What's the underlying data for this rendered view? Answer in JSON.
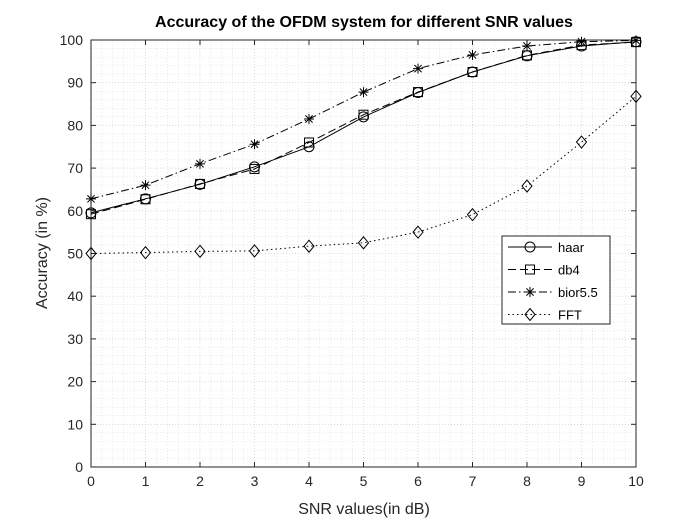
{
  "chart_data": {
    "type": "line",
    "title": "Accuracy of the OFDM system for different SNR values",
    "xlabel": "SNR values(in dB)",
    "ylabel": "Accuracy (in %)",
    "xlim": [
      0,
      10
    ],
    "ylim": [
      0,
      100
    ],
    "x_ticks": [
      "0",
      "1",
      "2",
      "3",
      "4",
      "5",
      "6",
      "7",
      "8",
      "9",
      "10"
    ],
    "y_ticks": [
      "0",
      "10",
      "20",
      "30",
      "40",
      "50",
      "60",
      "70",
      "80",
      "90",
      "100"
    ],
    "grid": "minor dotted",
    "legend_position": "right, middle",
    "x": [
      0,
      1,
      2,
      3,
      4,
      5,
      6,
      7,
      8,
      9,
      10
    ],
    "series": [
      {
        "name": "haar",
        "marker": "circle",
        "line_style": "solid",
        "values": [
          59.5,
          62.8,
          66.2,
          70.3,
          75.0,
          82.0,
          87.7,
          92.5,
          96.3,
          98.6,
          99.6
        ]
      },
      {
        "name": "db4",
        "marker": "square",
        "line_style": "dashed",
        "values": [
          59.2,
          62.7,
          66.3,
          69.8,
          76.0,
          82.5,
          87.8,
          92.5,
          96.4,
          98.8,
          99.5
        ]
      },
      {
        "name": "bior5.5",
        "marker": "asterisk",
        "line_style": "dash-dot",
        "values": [
          62.8,
          66.0,
          71.0,
          75.6,
          81.5,
          87.8,
          93.3,
          96.5,
          98.6,
          99.6,
          99.9
        ]
      },
      {
        "name": "FFT",
        "marker": "diamond",
        "line_style": "dotted",
        "values": [
          50.0,
          50.2,
          50.5,
          50.6,
          51.7,
          52.5,
          55.0,
          59.1,
          65.8,
          76.1,
          86.8
        ]
      }
    ],
    "colors": {
      "line": "#000000",
      "axis": "#262626",
      "background": "#ffffff"
    }
  }
}
